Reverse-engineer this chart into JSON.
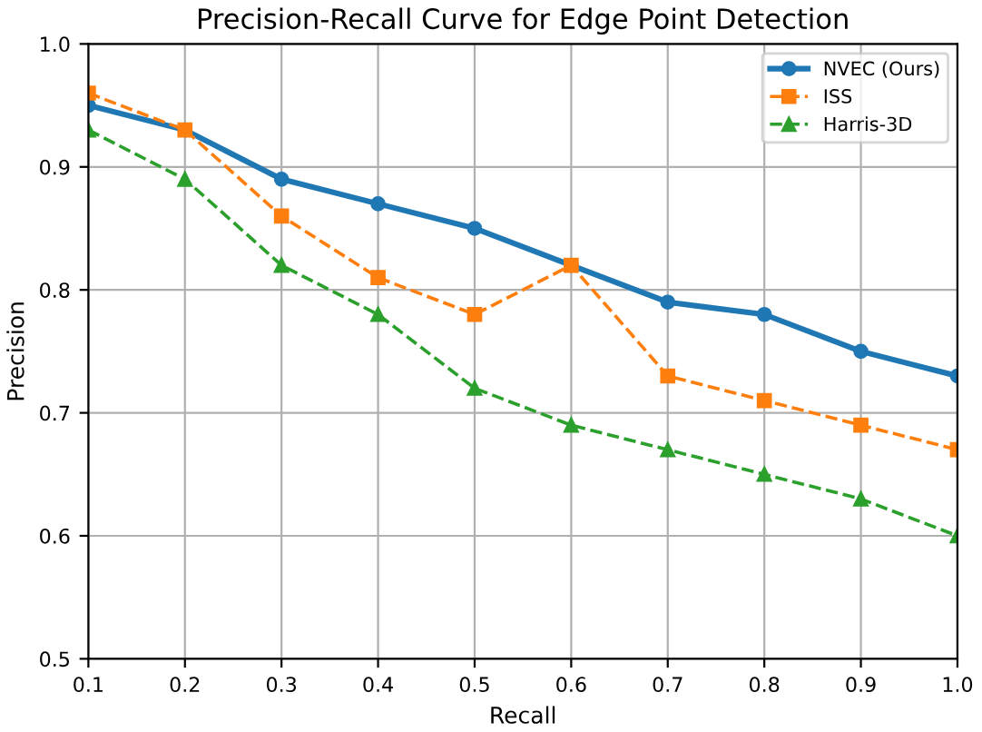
{
  "chart_data": {
    "type": "line",
    "title": "Precision-Recall Curve for Edge Point Detection",
    "xlabel": "Recall",
    "ylabel": "Precision",
    "x": [
      0.1,
      0.2,
      0.3,
      0.4,
      0.5,
      0.6,
      0.7,
      0.8,
      0.9,
      1.0
    ],
    "series": [
      {
        "name": "NVEC (Ours)",
        "color": "#1f77b4",
        "marker": "circle",
        "line_style": "solid",
        "values": [
          0.95,
          0.93,
          0.89,
          0.87,
          0.85,
          0.82,
          0.79,
          0.78,
          0.75,
          0.73
        ]
      },
      {
        "name": "ISS",
        "color": "#ff7f0e",
        "marker": "square",
        "line_style": "dashed",
        "values": [
          0.96,
          0.93,
          0.86,
          0.81,
          0.78,
          0.82,
          0.73,
          0.71,
          0.69,
          0.67
        ]
      },
      {
        "name": "Harris-3D",
        "color": "#2ca02c",
        "marker": "triangle",
        "line_style": "dashed",
        "values": [
          0.93,
          0.89,
          0.82,
          0.78,
          0.72,
          0.69,
          0.67,
          0.65,
          0.63,
          0.6
        ]
      }
    ],
    "xlim": [
      0.1,
      1.0
    ],
    "ylim": [
      0.5,
      1.0
    ],
    "xticks": [
      {
        "value": 0.1,
        "label": "0.1"
      },
      {
        "value": 0.2,
        "label": "0.2"
      },
      {
        "value": 0.3,
        "label": "0.3"
      },
      {
        "value": 0.4,
        "label": "0.4"
      },
      {
        "value": 0.5,
        "label": "0.5"
      },
      {
        "value": 0.6,
        "label": "0.6"
      },
      {
        "value": 0.7,
        "label": "0.7"
      },
      {
        "value": 0.8,
        "label": "0.8"
      },
      {
        "value": 0.9,
        "label": "0.9"
      },
      {
        "value": 1.0,
        "label": "1.0"
      }
    ],
    "yticks": [
      {
        "value": 0.5,
        "label": "0.5"
      },
      {
        "value": 0.6,
        "label": "0.6"
      },
      {
        "value": 0.7,
        "label": "0.7"
      },
      {
        "value": 0.8,
        "label": "0.8"
      },
      {
        "value": 0.9,
        "label": "0.9"
      },
      {
        "value": 1.0,
        "label": "1.0"
      }
    ],
    "grid": true,
    "legend": "top right"
  }
}
